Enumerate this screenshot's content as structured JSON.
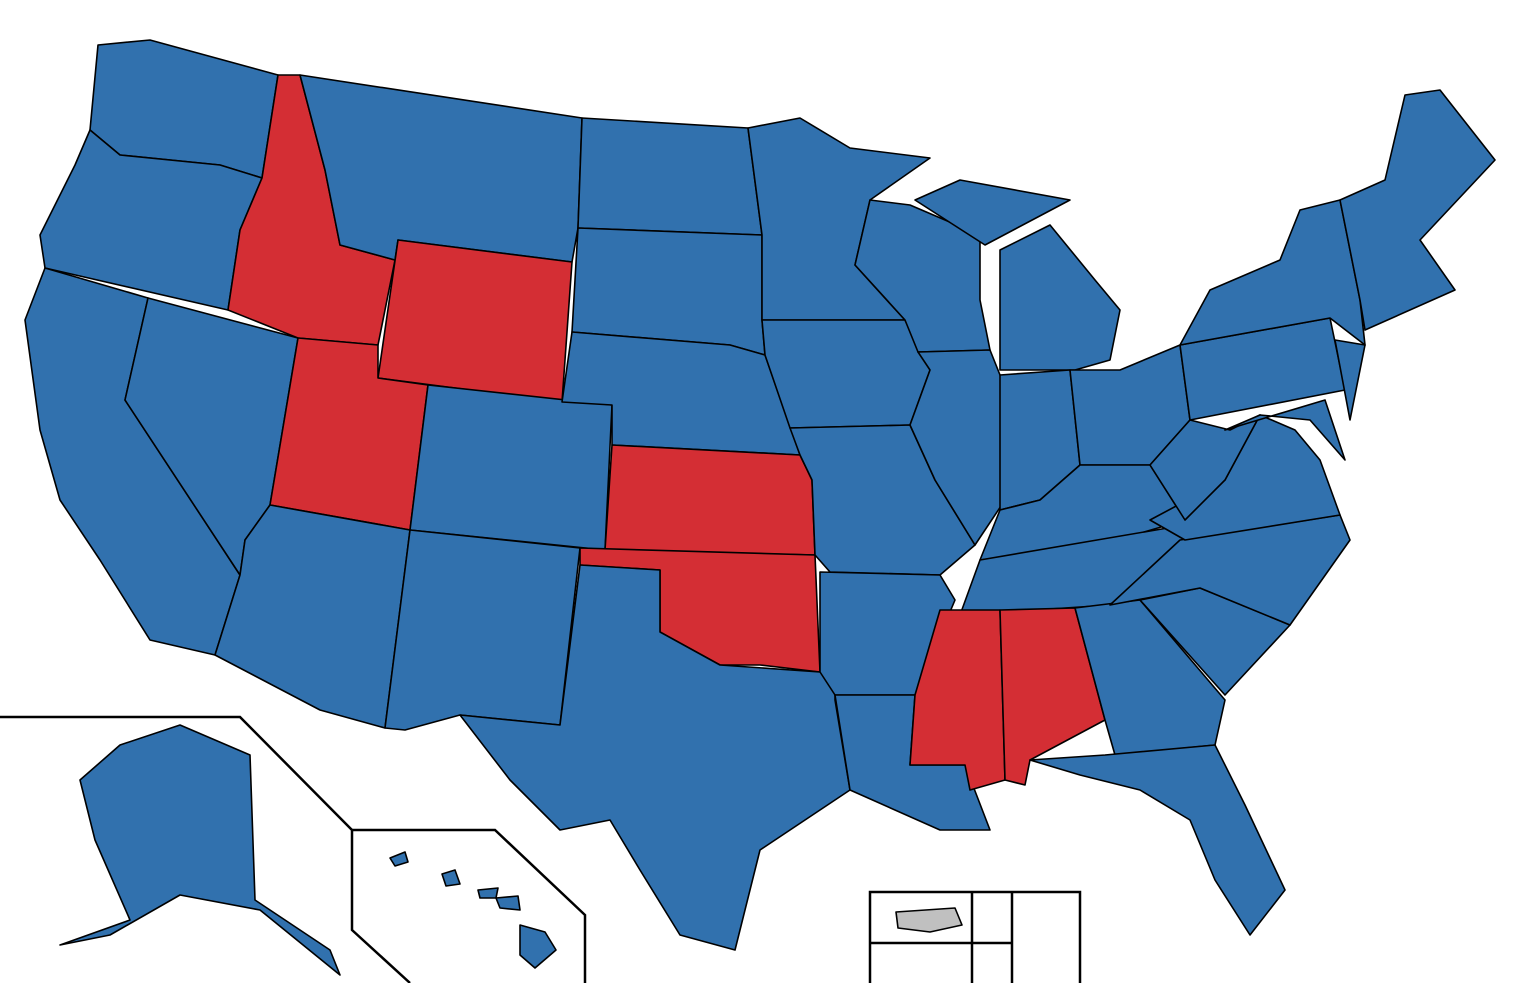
{
  "map": {
    "colors": [
      "#3171ae",
      "#d42e34",
      "#c0c0c0"
    ]
  }
}
